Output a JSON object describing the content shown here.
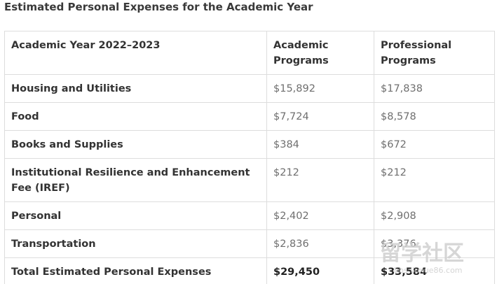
{
  "page": {
    "title": "Estimated Personal Expenses for the Academic Year"
  },
  "table": {
    "columns": [
      "Academic Year 2022–2023",
      "Academic Programs",
      "Professional Programs"
    ],
    "rows": [
      {
        "label": "Housing and Utilities",
        "academic": "$15,892",
        "professional": "$17,838"
      },
      {
        "label": "Food",
        "academic": "$7,724",
        "professional": "$8,578"
      },
      {
        "label": "Books and Supplies",
        "academic": "$384",
        "professional": "$672"
      },
      {
        "label": "Institutional Resilience and Enhancement Fee (IREF)",
        "academic": "$212",
        "professional": "$212"
      },
      {
        "label": "Personal",
        "academic": "$2,402",
        "professional": "$2,908"
      },
      {
        "label": "Transportation",
        "academic": "$2,836",
        "professional": "$3,376"
      },
      {
        "label": "Total Estimated Personal Expenses",
        "academic": "$29,450",
        "professional": "$33,584"
      }
    ]
  },
  "watermark": {
    "text": "留学社区",
    "url_text": "bbs.liuxue86.com",
    "color": "#cfcfcf"
  }
}
